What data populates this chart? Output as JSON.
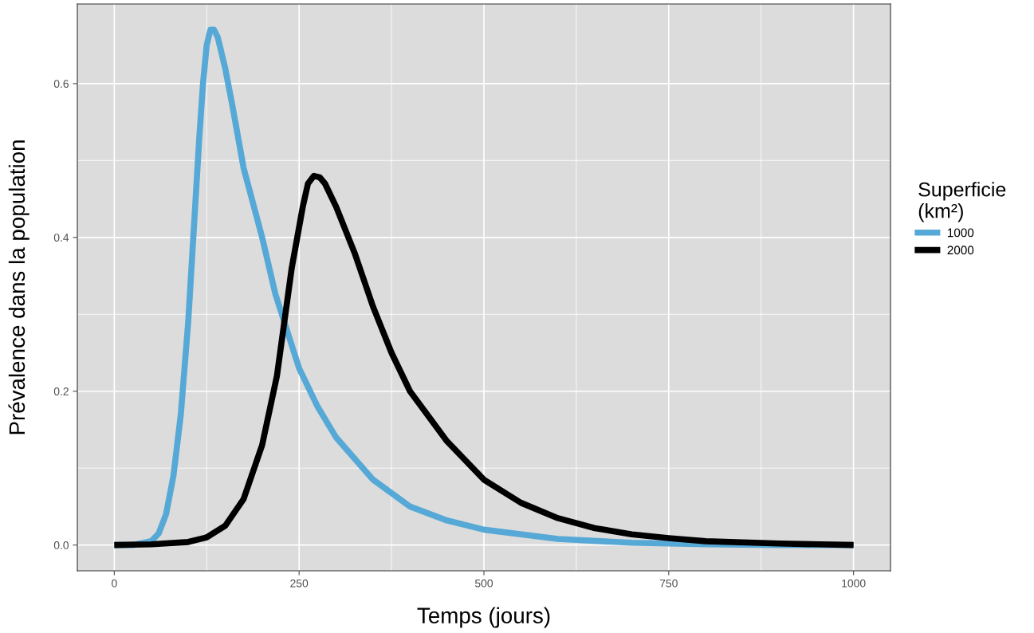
{
  "chart_data": {
    "type": "line",
    "xlabel": "Temps (jours)",
    "ylabel": "Prévalence dans la population",
    "legend_title": "Superficie\n(km²)",
    "legend": "right",
    "grid": true,
    "xlim": [
      -50,
      1050
    ],
    "xticks": [
      0,
      250,
      500,
      750,
      1000
    ],
    "ylim": [
      -0.0335,
      0.7035
    ],
    "yticks": [
      {
        "value": 0,
        "label": "0.0"
      },
      {
        "value": 0.2,
        "label": "0.2"
      },
      {
        "value": 0.4,
        "label": "0.4"
      },
      {
        "value": 0.6,
        "label": "0.6"
      }
    ],
    "series": [
      {
        "name": "1000",
        "color": "#56a9d6",
        "x": [
          0,
          25,
          50,
          60,
          70,
          80,
          90,
          100,
          110,
          115,
          120,
          125,
          130,
          135,
          140,
          150,
          160,
          175,
          200,
          218,
          250,
          275,
          300,
          350,
          400,
          450,
          500,
          600,
          700,
          800,
          900,
          1000
        ],
        "values": [
          0,
          0,
          0.005,
          0.015,
          0.04,
          0.09,
          0.17,
          0.29,
          0.45,
          0.53,
          0.6,
          0.65,
          0.67,
          0.67,
          0.66,
          0.62,
          0.57,
          0.49,
          0.4,
          0.326,
          0.23,
          0.18,
          0.14,
          0.085,
          0.05,
          0.032,
          0.02,
          0.008,
          0.003,
          0.001,
          0,
          0
        ]
      },
      {
        "name": "2000",
        "color": "#000000",
        "x": [
          0,
          50,
          100,
          125,
          150,
          175,
          200,
          220,
          240,
          255,
          262,
          270,
          278,
          285,
          300,
          325,
          350,
          375,
          400,
          450,
          500,
          550,
          600,
          650,
          700,
          750,
          800,
          900,
          1000
        ],
        "values": [
          0,
          0.001,
          0.004,
          0.01,
          0.025,
          0.06,
          0.13,
          0.22,
          0.36,
          0.44,
          0.47,
          0.48,
          0.478,
          0.47,
          0.44,
          0.38,
          0.31,
          0.25,
          0.2,
          0.135,
          0.085,
          0.055,
          0.035,
          0.022,
          0.014,
          0.009,
          0.005,
          0.002,
          0
        ]
      }
    ]
  }
}
